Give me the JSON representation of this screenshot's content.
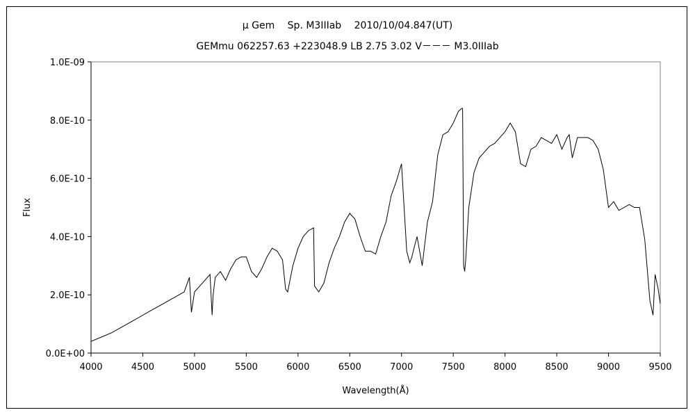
{
  "chart_data": {
    "type": "line",
    "title": "μ Gem　 Sp. M3IIIab　 2010/10/04.847(UT)",
    "subtitle": "GEMmu 062257.63 +223048.9 LB 2.75 3.02 V－－－ M3.0IIIab",
    "xlabel": "Wavelength(Å)",
    "ylabel": "Flux",
    "xlim": [
      4000,
      9500
    ],
    "ylim": [
      0,
      1e-09
    ],
    "x_ticks": [
      4000,
      4500,
      5000,
      5500,
      6000,
      6500,
      7000,
      7500,
      8000,
      8500,
      9000,
      9500
    ],
    "x_tick_labels": [
      "4000",
      "4500",
      "5000",
      "5500",
      "6000",
      "6500",
      "7000",
      "7500",
      "8000",
      "8500",
      "9000",
      "9500"
    ],
    "y_ticks": [
      0,
      2e-10,
      4e-10,
      6e-10,
      8e-10,
      1e-09
    ],
    "y_tick_labels": [
      "0.0E+00",
      "2.0E-10",
      "4.0E-10",
      "6.0E-10",
      "8.0E-10",
      "1.0E-09"
    ],
    "grid": false,
    "legend": "none",
    "line_color": "#000000",
    "series": [
      {
        "x": [
          4000,
          4100,
          4200,
          4300,
          4400,
          4500,
          4600,
          4700,
          4750,
          4800,
          4850,
          4900,
          4950,
          4970,
          5000,
          5050,
          5100,
          5150,
          5170,
          5180,
          5200,
          5250,
          5300,
          5350,
          5400,
          5450,
          5500,
          5550,
          5600,
          5650,
          5700,
          5750,
          5800,
          5850,
          5880,
          5900,
          5950,
          6000,
          6050,
          6100,
          6150,
          6160,
          6200,
          6250,
          6300,
          6350,
          6400,
          6450,
          6500,
          6550,
          6600,
          6650,
          6700,
          6750,
          6800,
          6850,
          6900,
          6950,
          7000,
          7050,
          7080,
          7100,
          7120,
          7150,
          7200,
          7250,
          7300,
          7350,
          7400,
          7450,
          7500,
          7550,
          7580,
          7590,
          7600,
          7610,
          7620,
          7650,
          7700,
          7750,
          7800,
          7850,
          7900,
          7950,
          8000,
          8050,
          8100,
          8150,
          8200,
          8250,
          8300,
          8350,
          8400,
          8450,
          8500,
          8550,
          8600,
          8620,
          8650,
          8700,
          8750,
          8800,
          8850,
          8900,
          8950,
          9000,
          9050,
          9100,
          9150,
          9200,
          9250,
          9300,
          9350,
          9400,
          9430,
          9450,
          9480,
          9500
        ],
        "y": [
          4e-11,
          5.5e-11,
          7e-11,
          9e-11,
          1.1e-10,
          1.3e-10,
          1.5e-10,
          1.7e-10,
          1.8e-10,
          1.9e-10,
          2e-10,
          2.1e-10,
          2.6e-10,
          1.4e-10,
          2.1e-10,
          2.3e-10,
          2.5e-10,
          2.7e-10,
          1.3e-10,
          2e-10,
          2.6e-10,
          2.8e-10,
          2.5e-10,
          2.9e-10,
          3.2e-10,
          3.3e-10,
          3.3e-10,
          2.8e-10,
          2.6e-10,
          2.9e-10,
          3.3e-10,
          3.6e-10,
          3.5e-10,
          3.2e-10,
          2.2e-10,
          2.1e-10,
          3e-10,
          3.6e-10,
          4e-10,
          4.2e-10,
          4.3e-10,
          2.3e-10,
          2.1e-10,
          2.4e-10,
          3.1e-10,
          3.6e-10,
          4e-10,
          4.5e-10,
          4.8e-10,
          4.6e-10,
          4e-10,
          3.5e-10,
          3.5e-10,
          3.4e-10,
          4e-10,
          4.5e-10,
          5.4e-10,
          5.9e-10,
          6.5e-10,
          3.5e-10,
          3.1e-10,
          3.3e-10,
          3.6e-10,
          4e-10,
          3e-10,
          4.5e-10,
          5.2e-10,
          6.8e-10,
          7.5e-10,
          7.6e-10,
          7.9e-10,
          8.3e-10,
          8.4e-10,
          8.4e-10,
          3e-10,
          2.8e-10,
          3.2e-10,
          5e-10,
          6.2e-10,
          6.7e-10,
          6.9e-10,
          7.1e-10,
          7.2e-10,
          7.4e-10,
          7.6e-10,
          7.9e-10,
          7.6e-10,
          6.5e-10,
          6.4e-10,
          7e-10,
          7.1e-10,
          7.4e-10,
          7.3e-10,
          7.2e-10,
          7.5e-10,
          7e-10,
          7.4e-10,
          7.5e-10,
          6.7e-10,
          7.4e-10,
          7.4e-10,
          7.4e-10,
          7.3e-10,
          7e-10,
          6.3e-10,
          5e-10,
          5.2e-10,
          4.9e-10,
          5e-10,
          5.1e-10,
          5e-10,
          5e-10,
          3.9e-10,
          1.8e-10,
          1.3e-10,
          2.7e-10,
          2.2e-10,
          1.7e-10
        ]
      }
    ]
  }
}
